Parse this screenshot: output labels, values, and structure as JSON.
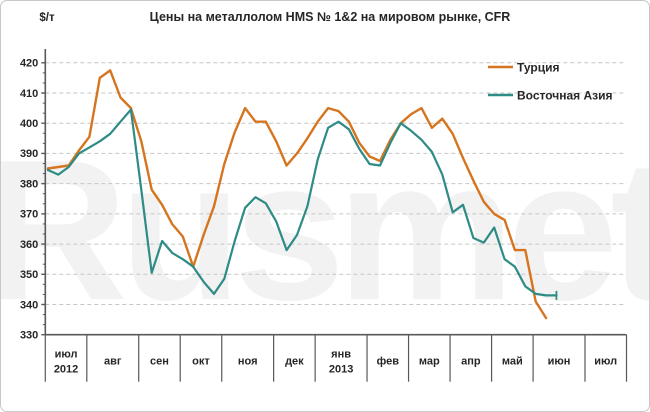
{
  "title": "Цены на металлолом HMS № 1&2 на мировом рынке, CFR",
  "y_axis": {
    "unit_label": "$/т",
    "min": 330,
    "max": 420,
    "step": 10,
    "minor_per_major": 3
  },
  "x_axis": {
    "months": [
      {
        "label": "июл",
        "sublabel": "2012",
        "weeks": 4
      },
      {
        "label": "авг",
        "sublabel": "",
        "weeks": 5
      },
      {
        "label": "сен",
        "sublabel": "",
        "weeks": 4
      },
      {
        "label": "окт",
        "sublabel": "",
        "weeks": 4
      },
      {
        "label": "ноя",
        "sublabel": "",
        "weeks": 5
      },
      {
        "label": "дек",
        "sublabel": "",
        "weeks": 4
      },
      {
        "label": "янв",
        "sublabel": "2013",
        "weeks": 5
      },
      {
        "label": "фев",
        "sublabel": "",
        "weeks": 4
      },
      {
        "label": "мар",
        "sublabel": "",
        "weeks": 4
      },
      {
        "label": "апр",
        "sublabel": "",
        "weeks": 4
      },
      {
        "label": "май",
        "sublabel": "",
        "weeks": 4
      },
      {
        "label": "июн",
        "sublabel": "",
        "weeks": 5
      },
      {
        "label": "июл",
        "sublabel": "",
        "weeks": 4
      }
    ]
  },
  "watermark": "Rusmet",
  "colors": {
    "turkey": "#d6751f",
    "east_asia": "#2e8b85",
    "grid": "#c6c6c6",
    "axis": "#595959",
    "text": "#262626"
  },
  "chart_data": {
    "type": "line",
    "title": "Цены на металлолом HMS № 1&2 на мировом рынке, CFR",
    "xlabel": "",
    "ylabel": "$/т",
    "ylim": [
      330,
      420
    ],
    "grid": "horizontal-dashed",
    "legend_position": "top-right",
    "x_unit": "weekly points, июл 2012 — июл 2013",
    "series": [
      {
        "name": "Турция",
        "color": "#d6751f",
        "values": [
          385,
          385.5,
          386,
          391,
          395.5,
          415,
          417.5,
          408.5,
          405,
          394,
          378,
          373,
          366.5,
          362.5,
          352.5,
          363,
          372.5,
          386.5,
          397,
          405,
          400.5,
          400.5,
          394,
          386,
          390,
          395,
          400.5,
          405,
          404,
          400.5,
          393.5,
          389,
          387.5,
          394.5,
          400,
          403,
          405,
          398.5,
          401.5,
          396.5,
          388.5,
          381,
          374,
          370,
          368,
          358,
          358,
          341,
          335.5
        ]
      },
      {
        "name": "Восточная Азия",
        "color": "#2e8b85",
        "values": [
          384.5,
          383,
          385.5,
          390,
          392,
          394,
          396.5,
          400.5,
          404.5,
          378,
          350.5,
          361,
          357,
          355,
          352.5,
          347.5,
          343.5,
          348.5,
          361,
          372,
          375.5,
          373.5,
          367.5,
          358,
          363,
          372.5,
          388,
          398.5,
          400.5,
          398,
          391.5,
          386.5,
          386,
          393.5,
          400,
          397.5,
          394.5,
          390.5,
          383,
          370.5,
          373,
          362,
          360.5,
          365.5,
          355,
          352.5,
          346,
          343.5,
          343,
          343
        ]
      }
    ]
  }
}
